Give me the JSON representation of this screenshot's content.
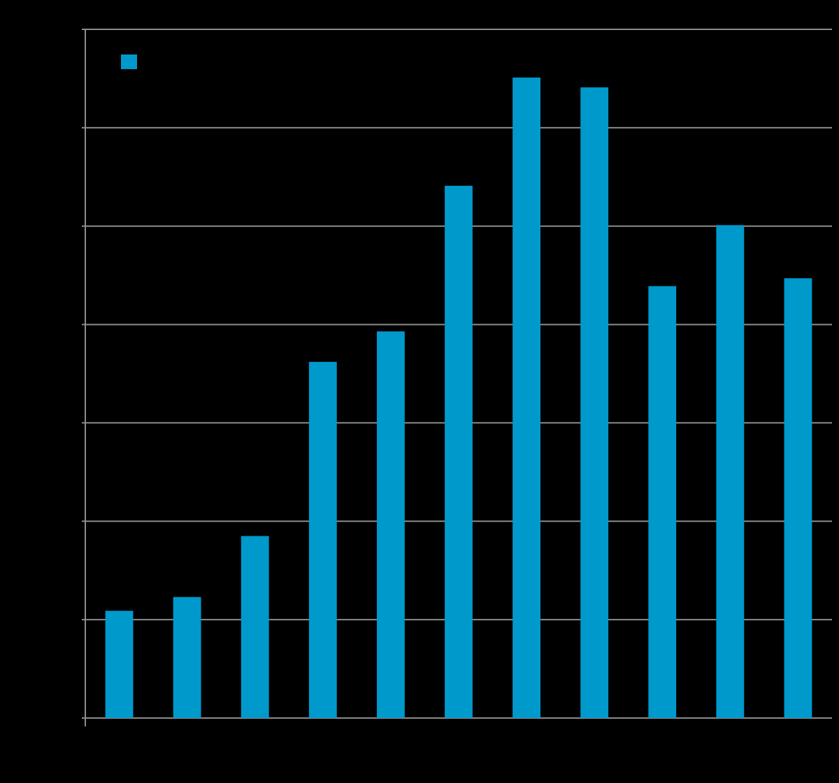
{
  "chart_data": {
    "type": "bar",
    "categories": [
      null,
      null,
      null,
      null,
      null,
      null,
      null,
      null,
      null,
      null,
      null
    ],
    "series": [
      {
        "color": "#0099cc",
        "values": [
          1.09,
          1.23,
          1.85,
          3.62,
          3.93,
          5.41,
          6.51,
          6.41,
          4.39,
          5.01,
          4.47
        ]
      }
    ],
    "ylim": [
      0,
      7
    ],
    "yticks": [
      0,
      1,
      2,
      3,
      4,
      5,
      6,
      7
    ],
    "grid": true,
    "legend": "top-left"
  }
}
